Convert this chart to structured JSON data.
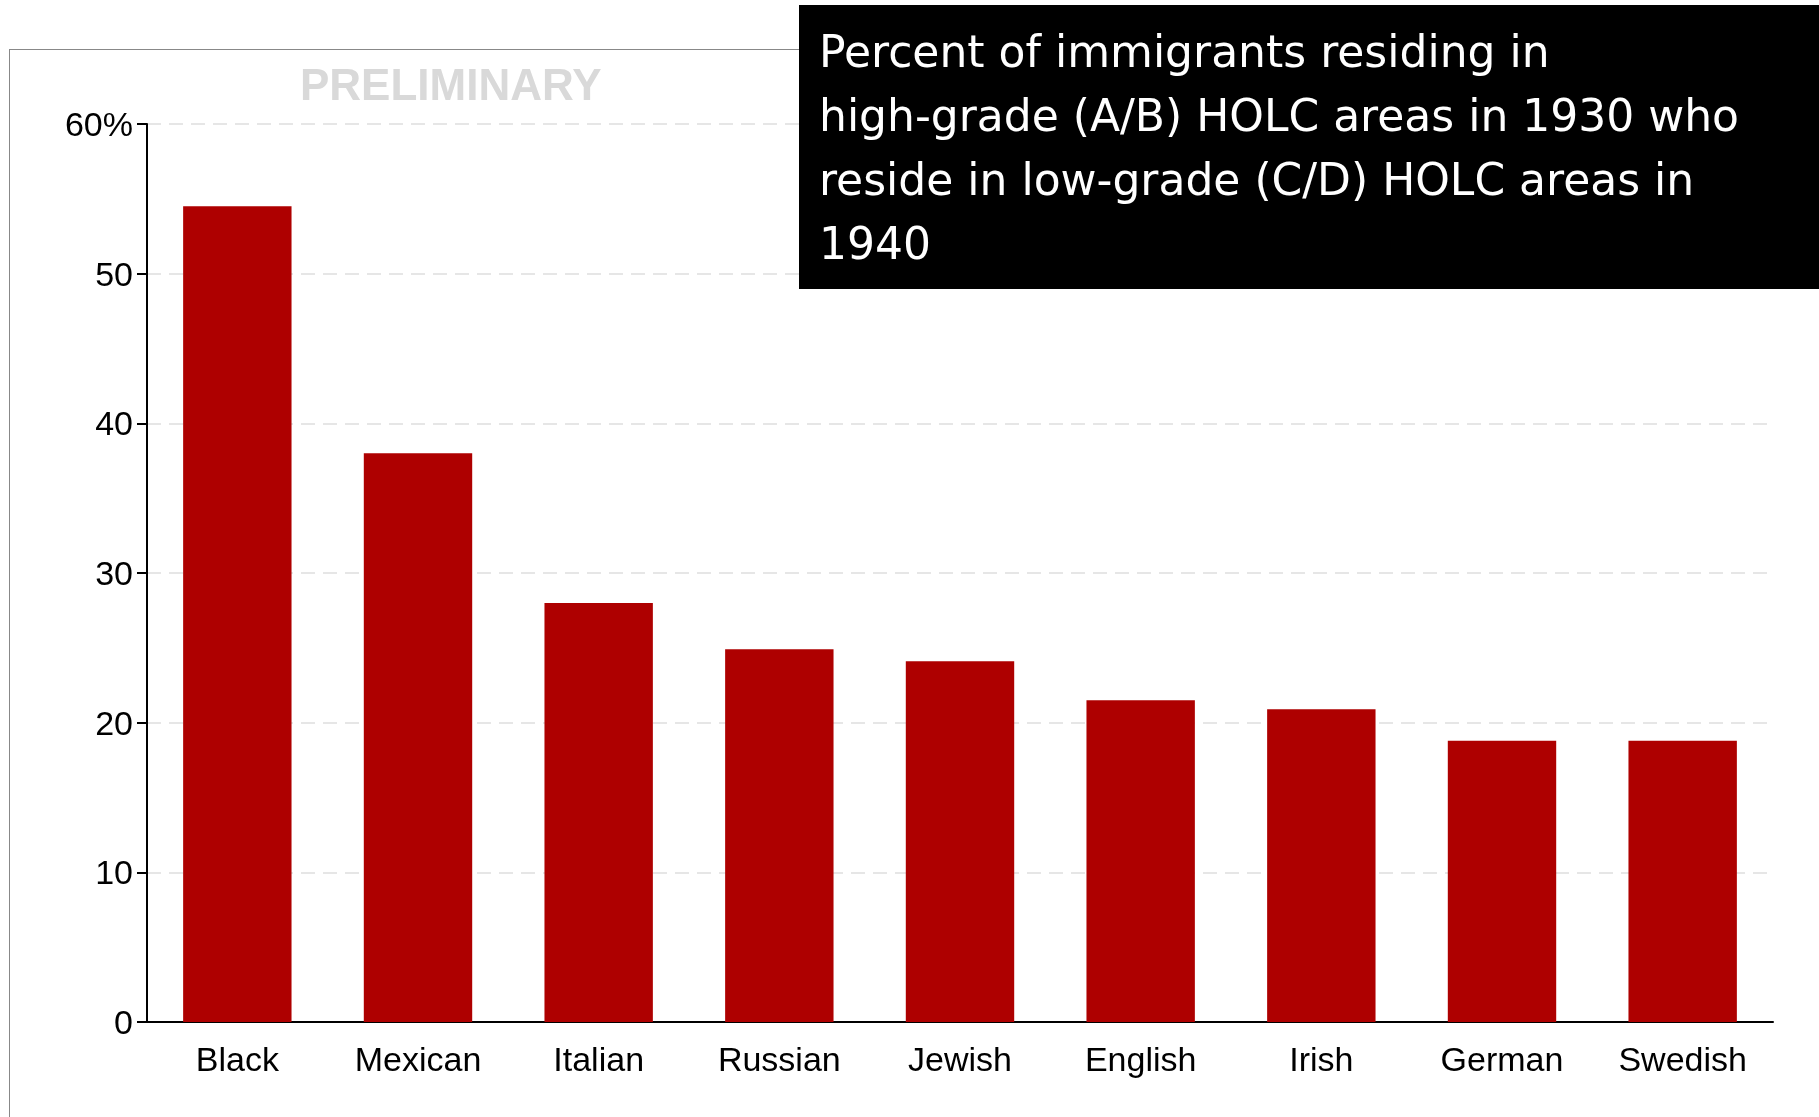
{
  "chart_data": {
    "type": "bar",
    "title": "Percent of immigrants residing in high-grade (A/B) HOLC areas in 1930 who reside in low-grade (C/D) HOLC areas in 1940",
    "categories": [
      "Black",
      "Mexican",
      "Italian",
      "Russian",
      "Jewish",
      "English",
      "Irish",
      "German",
      "Swedish"
    ],
    "values": [
      54.5,
      38.0,
      28.0,
      24.9,
      24.1,
      21.5,
      20.9,
      18.8,
      18.8
    ],
    "color": "#ae0000",
    "ylim": [
      0,
      60
    ],
    "yticks": [
      0,
      10,
      20,
      30,
      40,
      50,
      {
        "value": 60,
        "label": "60%"
      }
    ],
    "grid": "y",
    "annotations": [
      "PRELIMINARY"
    ]
  }
}
